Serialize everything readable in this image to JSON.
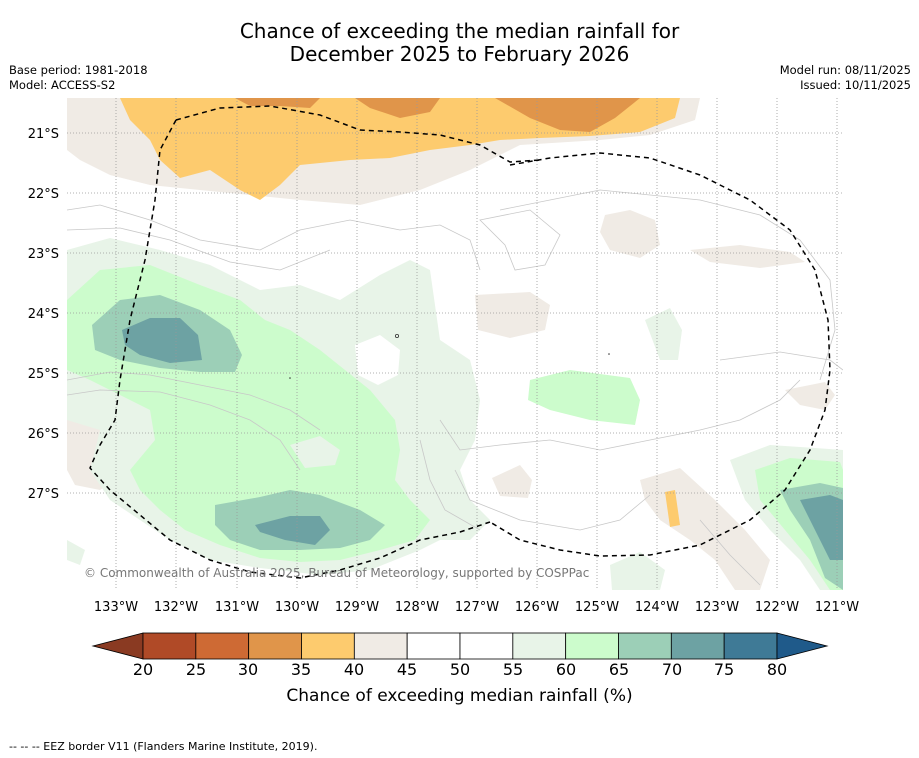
{
  "title_line1": "Chance of exceeding the median rainfall for",
  "title_line2": "December 2025 to February 2026",
  "base_period": "Base period: 1981-2018",
  "model": "Model: ACCESS-S2",
  "model_run": "Model run: 08/11/2025",
  "issued": "Issued: 10/11/2025",
  "copyright": "© Commonwealth of Australia 2025, Bureau of Meteorology, supported by COSPPac",
  "lat_labels": [
    "21°S",
    "22°S",
    "23°S",
    "24°S",
    "25°S",
    "26°S",
    "27°S"
  ],
  "lon_labels": [
    "133°W",
    "132°W",
    "131°W",
    "130°W",
    "129°W",
    "128°W",
    "127°W",
    "126°W",
    "125°W",
    "124°W",
    "123°W",
    "122°W",
    "121°W"
  ],
  "colorbar": {
    "ticks": [
      "20",
      "25",
      "30",
      "35",
      "40",
      "45",
      "50",
      "55",
      "60",
      "65",
      "70",
      "75",
      "80"
    ],
    "colors": [
      "#b04a27",
      "#ce6a34",
      "#e0954a",
      "#fdcb6e",
      "#f0ebe5",
      "#ffffff",
      "#ffffff",
      "#e8f4e8",
      "#ccfccc",
      "#9ccfb7",
      "#6da2a3",
      "#3f7a96"
    ],
    "low_extend_color": "#8a3a22",
    "high_extend_color": "#1f5a8a",
    "title": "Chance of exceeding median rainfall (%)"
  },
  "footnote": "--  --  -- EEZ border V11 (Flanders Marine Institute, 2019)."
}
